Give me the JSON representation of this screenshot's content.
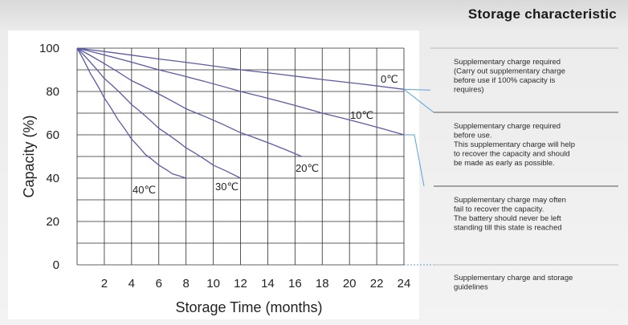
{
  "header": {
    "title": "Storage characteristic"
  },
  "chart_data": {
    "type": "line",
    "xlabel": "Storage Time (months)",
    "ylabel": "Capacity  (%)",
    "xlim": [
      0,
      24
    ],
    "ylim": [
      0,
      100
    ],
    "x_ticks": [
      "2",
      "4",
      "6",
      "8",
      "10",
      "12",
      "14",
      "16",
      "18",
      "20",
      "22",
      "24"
    ],
    "y_ticks": [
      "0",
      "20",
      "40",
      "60",
      "80",
      "100"
    ],
    "grid": true,
    "series": [
      {
        "name": "0℃",
        "x": [
          0,
          6,
          12,
          18,
          24
        ],
        "y": [
          100,
          95,
          90,
          85.5,
          81
        ]
      },
      {
        "name": "10℃",
        "x": [
          0,
          6,
          12,
          18,
          24
        ],
        "y": [
          100,
          90,
          80,
          70,
          60
        ]
      },
      {
        "name": "20℃",
        "x": [
          0,
          4,
          8,
          12,
          16.5
        ],
        "y": [
          100,
          85,
          72,
          61,
          50
        ]
      },
      {
        "name": "30℃",
        "x": [
          0,
          2,
          4,
          6,
          8,
          10,
          12
        ],
        "y": [
          100,
          86,
          74,
          63,
          54,
          46,
          40
        ]
      },
      {
        "name": "40℃",
        "x": [
          0,
          1,
          2,
          3,
          4,
          5,
          6,
          7,
          8
        ],
        "y": [
          100,
          88,
          77,
          67,
          58,
          51,
          46,
          42,
          40
        ]
      }
    ],
    "guidelines": [
      {
        "text": [
          "Supplementary charge required",
          "(Carry out supplementary charge",
          "before use if 100% capacity is",
          "requires)"
        ]
      },
      {
        "text": [
          "Supplementary charge required",
          "before use.",
          "This supplementary charge will help",
          "to recover the capacity and should",
          "be made  as early as possible."
        ]
      },
      {
        "text": [
          "Supplementary charge may often",
          "fail to recover the capacity.",
          "The battery should never be left",
          "standing till this state is reached"
        ]
      },
      {
        "text": [
          "Supplementary charge and storage",
          "guidelines"
        ]
      }
    ]
  },
  "colors": {
    "series_line": "#5a5aa8",
    "grid": "#2b2b2b",
    "connector": "#5aa0d8",
    "divider": "#555555"
  }
}
